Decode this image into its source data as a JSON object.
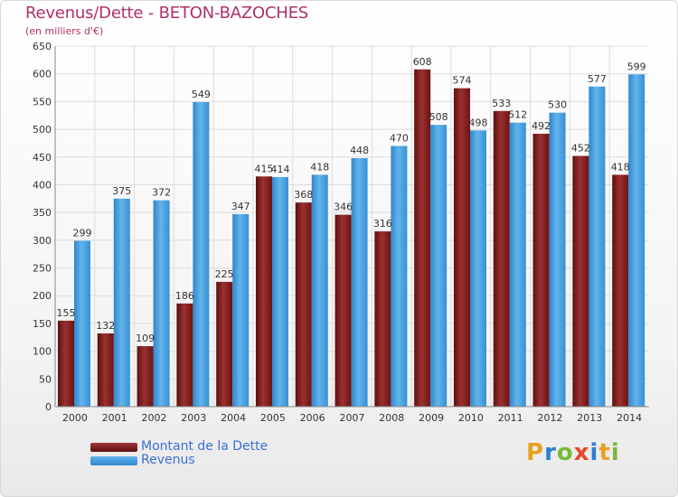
{
  "header": {
    "title": "Revenus/Dette - BETON-BAZOCHES",
    "subtitle": "(en milliers d'€)"
  },
  "legend": {
    "debt_label": "Montant de la Dette",
    "revenue_label": "Revenus"
  },
  "logo": {
    "text": "Proxiti",
    "letter_colors": [
      "#e8a020",
      "#2d7fd0",
      "#7bb83a",
      "#e8452c",
      "#2d7fd0",
      "#e8a020",
      "#7bb83a"
    ]
  },
  "colors": {
    "debt": "#7a1d1d",
    "debt_light": "#a33a3a",
    "revenue": "#3d98dc",
    "revenue_light": "#65b6ee",
    "grid": "#dddddd",
    "axis_text": "#333333"
  },
  "chart_data": {
    "type": "bar",
    "title": "Revenus/Dette - BETON-BAZOCHES",
    "subtitle": "(en milliers d'€)",
    "categories": [
      "2000",
      "2001",
      "2002",
      "2003",
      "2004",
      "2005",
      "2006",
      "2007",
      "2008",
      "2009",
      "2010",
      "2011",
      "2012",
      "2013",
      "2014"
    ],
    "series": [
      {
        "name": "Montant de la Dette",
        "values": [
          155,
          132,
          109,
          186,
          225,
          415,
          368,
          346,
          316,
          608,
          574,
          533,
          492,
          452,
          418
        ]
      },
      {
        "name": "Revenus",
        "values": [
          299,
          375,
          372,
          549,
          347,
          414,
          418,
          448,
          470,
          508,
          498,
          512,
          530,
          577,
          599
        ]
      }
    ],
    "ylim": [
      0,
      650
    ],
    "yticks": [
      0,
      50,
      100,
      150,
      200,
      250,
      300,
      350,
      400,
      450,
      500,
      550,
      600,
      650
    ],
    "grid": true,
    "legend_position": "bottom-left"
  }
}
